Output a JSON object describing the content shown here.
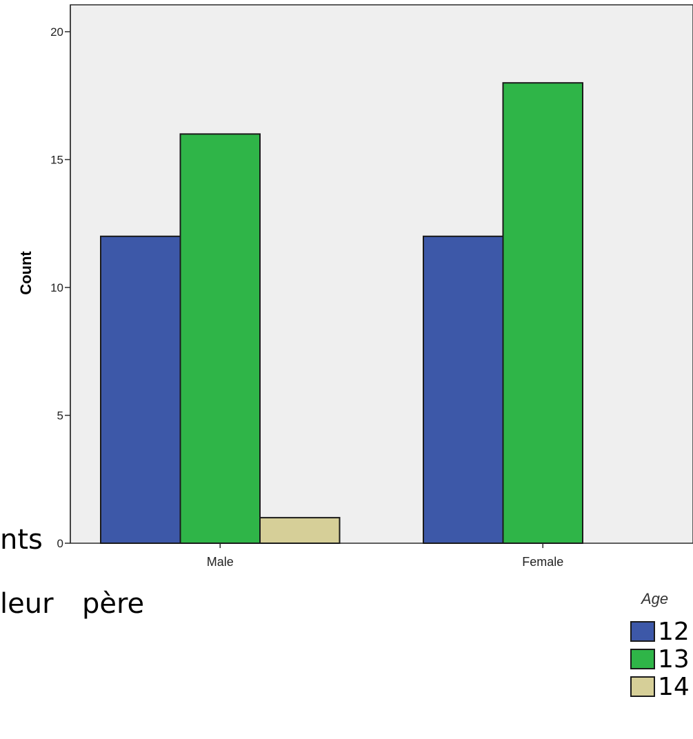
{
  "fragments": {
    "left_text_1": "nts",
    "left_text_2": "leur  père"
  },
  "chart_data": {
    "type": "bar",
    "title": "",
    "xlabel": "",
    "ylabel": "Count",
    "categories": [
      "Male",
      "Female"
    ],
    "ylim": [
      0,
      20
    ],
    "yticks": [
      "0",
      "5",
      "10",
      "15",
      "20"
    ],
    "grid": false,
    "background": "#efefef",
    "legend": {
      "title": "Age",
      "placement": "bottom-right"
    },
    "series": [
      {
        "name": "12",
        "color": "#3d58a8",
        "values": [
          12,
          12
        ]
      },
      {
        "name": "13",
        "color": "#2fb548",
        "values": [
          16,
          18
        ]
      },
      {
        "name": "14",
        "color": "#d6cf98",
        "values": [
          1,
          0
        ]
      }
    ]
  }
}
